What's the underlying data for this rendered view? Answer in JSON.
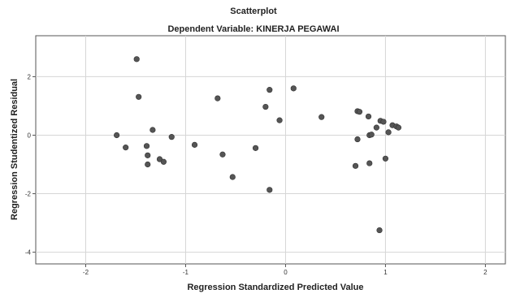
{
  "chart_data": {
    "type": "scatter",
    "title": "Scatterplot",
    "subtitle": "Dependent Variable: KINERJA PEGAWAI",
    "xlabel": "Regression Standardized Predicted Value",
    "ylabel": "Regression Studentized Residual",
    "xlim": [
      -2.5,
      2.2
    ],
    "ylim": [
      -4.4,
      3.4
    ],
    "xticks": [
      -2,
      -1,
      0,
      1,
      2
    ],
    "yticks": [
      2,
      0,
      -2,
      -4
    ],
    "grid": true,
    "point_color": "#555555",
    "points": [
      {
        "x": -1.49,
        "y": 2.6
      },
      {
        "x": -1.47,
        "y": 1.31
      },
      {
        "x": -1.69,
        "y": 0.0
      },
      {
        "x": -1.6,
        "y": -0.42
      },
      {
        "x": -1.39,
        "y": -0.37
      },
      {
        "x": -1.38,
        "y": -0.69
      },
      {
        "x": -1.38,
        "y": -1.0
      },
      {
        "x": -1.33,
        "y": 0.18
      },
      {
        "x": -1.26,
        "y": -0.82
      },
      {
        "x": -1.22,
        "y": -0.91
      },
      {
        "x": -1.14,
        "y": -0.06
      },
      {
        "x": -0.91,
        "y": -0.33
      },
      {
        "x": -0.68,
        "y": 1.26
      },
      {
        "x": -0.63,
        "y": -0.66
      },
      {
        "x": -0.53,
        "y": -1.43
      },
      {
        "x": -0.3,
        "y": -0.44
      },
      {
        "x": -0.2,
        "y": 0.97
      },
      {
        "x": -0.16,
        "y": 1.55
      },
      {
        "x": -0.16,
        "y": -1.87
      },
      {
        "x": -0.06,
        "y": 0.51
      },
      {
        "x": 0.08,
        "y": 1.6
      },
      {
        "x": 0.36,
        "y": 0.62
      },
      {
        "x": 0.7,
        "y": -1.05
      },
      {
        "x": 0.72,
        "y": -0.14
      },
      {
        "x": 0.72,
        "y": 0.82
      },
      {
        "x": 0.74,
        "y": 0.8
      },
      {
        "x": 0.83,
        "y": 0.64
      },
      {
        "x": 0.84,
        "y": -0.96
      },
      {
        "x": 0.84,
        "y": 0.0
      },
      {
        "x": 0.86,
        "y": 0.02
      },
      {
        "x": 0.91,
        "y": 0.26
      },
      {
        "x": 0.94,
        "y": -3.25
      },
      {
        "x": 0.95,
        "y": 0.49
      },
      {
        "x": 0.98,
        "y": 0.46
      },
      {
        "x": 1.0,
        "y": -0.8
      },
      {
        "x": 1.03,
        "y": 0.1
      },
      {
        "x": 1.07,
        "y": 0.34
      },
      {
        "x": 1.11,
        "y": 0.3
      },
      {
        "x": 1.13,
        "y": 0.26
      }
    ]
  }
}
